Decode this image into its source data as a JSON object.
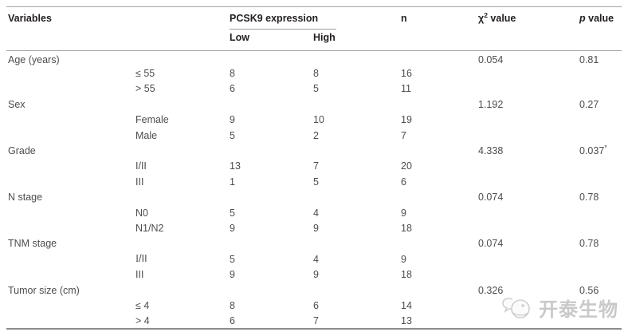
{
  "table": {
    "header": {
      "variables": "Variables",
      "pcsk9": "PCSK9 expression",
      "low": "Low",
      "high": "High",
      "n": "n",
      "chi_sym": "χ",
      "chi_sup": "2",
      "chi_rest": " value",
      "p_italic": "p",
      "p_rest": " value"
    },
    "rows": [
      {
        "type": "group",
        "label": "Age (years)",
        "chi": "0.054",
        "p": "0.81"
      },
      {
        "type": "sub",
        "label": "≤ 55",
        "low": "8",
        "high": "8",
        "n": "16"
      },
      {
        "type": "sub",
        "label": "> 55",
        "low": "6",
        "high": "5",
        "n": "11"
      },
      {
        "type": "group",
        "label": "Sex",
        "chi": "1.192",
        "p": "0.27"
      },
      {
        "type": "sub",
        "label": "Female",
        "low": "9",
        "high": "10",
        "n": "19"
      },
      {
        "type": "sub",
        "label": "Male",
        "low": "5",
        "high": "2",
        "n": "7"
      },
      {
        "type": "group",
        "label": "Grade",
        "chi": "4.338",
        "p": "0.037",
        "p_sup": "*"
      },
      {
        "type": "sub",
        "label": "I/II",
        "low": "13",
        "high": "7",
        "n": "20"
      },
      {
        "type": "sub",
        "label": "III",
        "low": "1",
        "high": "5",
        "n": "6"
      },
      {
        "type": "group",
        "label": "N stage",
        "chi": "0.074",
        "p": "0.78"
      },
      {
        "type": "sub",
        "label": "N0",
        "low": "5",
        "high": "4",
        "n": "9"
      },
      {
        "type": "sub",
        "label": "N1/N2",
        "low": "9",
        "high": "9",
        "n": "18"
      },
      {
        "type": "group",
        "label": "TNM stage",
        "chi": "0.074",
        "p": "0.78"
      },
      {
        "type": "sub",
        "label": "I/II",
        "serif": true,
        "low": "5",
        "high": "4",
        "n": "9"
      },
      {
        "type": "sub",
        "label": "III",
        "low": "9",
        "high": "9",
        "n": "18"
      },
      {
        "type": "group",
        "label": "Tumor size (cm)",
        "chi": "0.326",
        "p": "0.56"
      },
      {
        "type": "sub",
        "label": "≤ 4",
        "low": "8",
        "high": "6",
        "n": "14"
      },
      {
        "type": "sub",
        "label": "> 4",
        "low": "6",
        "high": "7",
        "n": "13"
      }
    ]
  },
  "watermark": {
    "text": "开泰生物"
  },
  "colors": {
    "header_text": "#231f20",
    "body_text": "#4d4d4d",
    "rule": "#a3a3a3",
    "bottom_rule": "#8c8c8c",
    "watermark": "#c9c9c9"
  }
}
